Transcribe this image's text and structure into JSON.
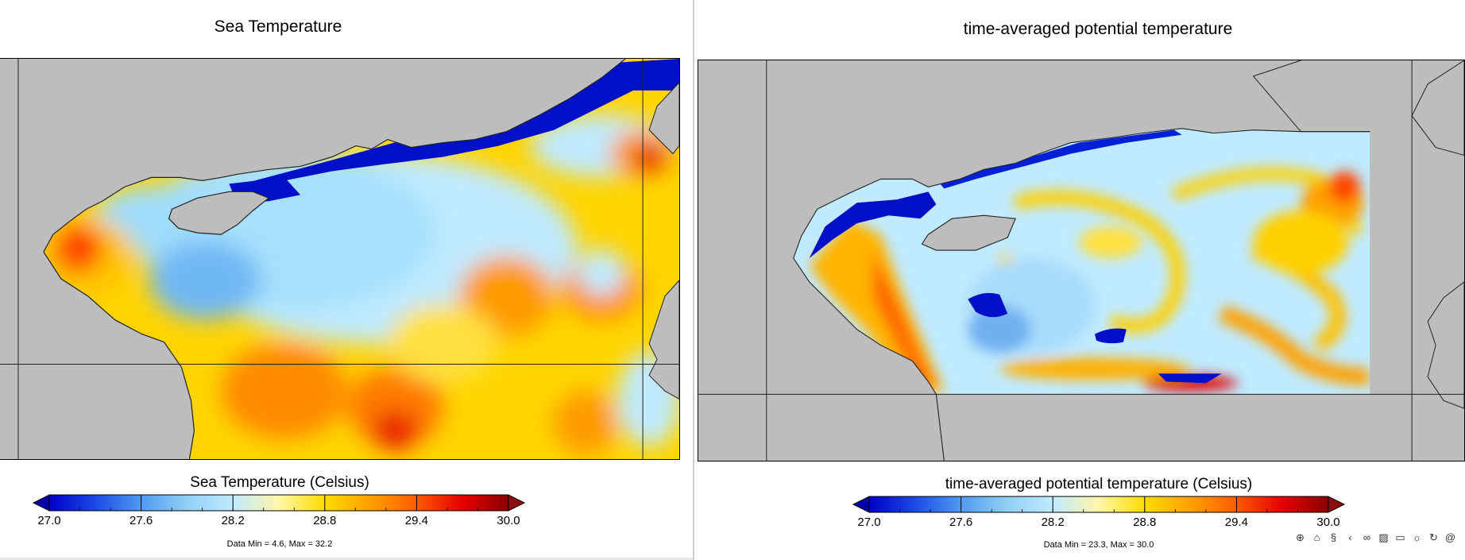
{
  "panels": [
    {
      "title": "Sea Temperature",
      "colorbar_label": "Sea Temperature (Celsius)",
      "data_min_max": "Data Min = 4.6, Max = 32.2"
    },
    {
      "title": "time-averaged potential temperature",
      "colorbar_label": "time-averaged potential temperature (Celsius)",
      "data_min_max": "Data Min = 23.3, Max = 30.0"
    }
  ],
  "colorbar": {
    "min": 27.0,
    "max": 30.0,
    "tick_labels": [
      "27.0",
      "27.6",
      "28.2",
      "28.8",
      "29.4",
      "30.0"
    ],
    "under_color": "#0000a8",
    "over_color": "#8a0f0f",
    "stops": [
      "#0000c8",
      "#1a4ae6",
      "#4f9bf0",
      "#8fd0f5",
      "#bfeaff",
      "#fff6a8",
      "#ffdc00",
      "#ffa000",
      "#ff5a00",
      "#e60000",
      "#8a0000"
    ]
  },
  "chart_data": [
    {
      "type": "heatmap",
      "title": "Sea Temperature",
      "colorbar_label": "Sea Temperature (Celsius)",
      "units": "Celsius",
      "color_range": [
        27.0,
        30.0
      ],
      "colorbar_ticks": [
        27.0,
        27.6,
        28.2,
        28.8,
        29.4,
        30.0
      ],
      "data_min": 4.6,
      "data_max": 32.2
    },
    {
      "type": "heatmap",
      "title": "time-averaged potential temperature",
      "colorbar_label": "time-averaged potential temperature (Celsius)",
      "units": "Celsius",
      "color_range": [
        27.0,
        30.0
      ],
      "colorbar_ticks": [
        27.0,
        27.6,
        28.2,
        28.8,
        29.4,
        30.0
      ],
      "data_min": 23.3,
      "data_max": 30.0
    }
  ],
  "toolbar": {
    "icons": [
      "globe-icon",
      "shirt-icon",
      "s-icon",
      "back-arrow-icon",
      "link-icon",
      "image-icon",
      "layer-icon",
      "sun-icon",
      "rotate-icon",
      "spiral-icon"
    ]
  }
}
